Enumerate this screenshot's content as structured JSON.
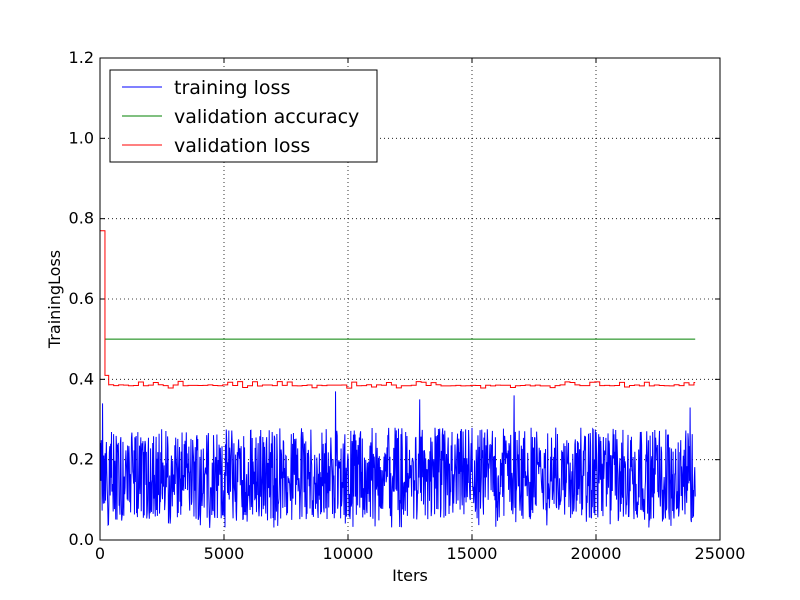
{
  "chart_data": {
    "type": "line",
    "title": "",
    "xlabel": "Iters",
    "ylabel": "TrainingLoss",
    "xlim": [
      0,
      25000
    ],
    "ylim": [
      0.0,
      1.2
    ],
    "x_ticks": [
      0,
      5000,
      10000,
      15000,
      20000,
      25000
    ],
    "x_tick_labels": [
      "0",
      "5000",
      "10000",
      "15000",
      "20000",
      "25000"
    ],
    "y_ticks": [
      0.0,
      0.2,
      0.4,
      0.6,
      0.8,
      1.0,
      1.2
    ],
    "y_tick_labels": [
      "0.0",
      "0.2",
      "0.4",
      "0.6",
      "0.8",
      "1.0",
      "1.2"
    ],
    "grid": true,
    "grid_style": "dotted",
    "legend_position": "top-left",
    "series": [
      {
        "name": "training loss",
        "color": "#0000ff",
        "style": "noisy",
        "x_range": [
          0,
          24000
        ],
        "typical_range": [
          0.05,
          0.28
        ],
        "mean": 0.16,
        "peak_values": [
          {
            "x": 100,
            "y": 0.34
          },
          {
            "x": 9500,
            "y": 0.37
          },
          {
            "x": 12900,
            "y": 0.35
          },
          {
            "x": 16700,
            "y": 0.36
          },
          {
            "x": 23800,
            "y": 0.33
          }
        ]
      },
      {
        "name": "validation accuracy",
        "color": "#008000",
        "x": [
          200,
          24000
        ],
        "y": [
          0.5,
          0.5
        ]
      },
      {
        "name": "validation loss",
        "color": "#ff0000",
        "style": "step",
        "x": [
          0,
          200,
          200,
          350,
          350,
          24000
        ],
        "y": [
          0.77,
          0.77,
          0.41,
          0.41,
          0.385,
          0.385
        ],
        "fluctuation_range": [
          0.378,
          0.395
        ]
      }
    ]
  }
}
